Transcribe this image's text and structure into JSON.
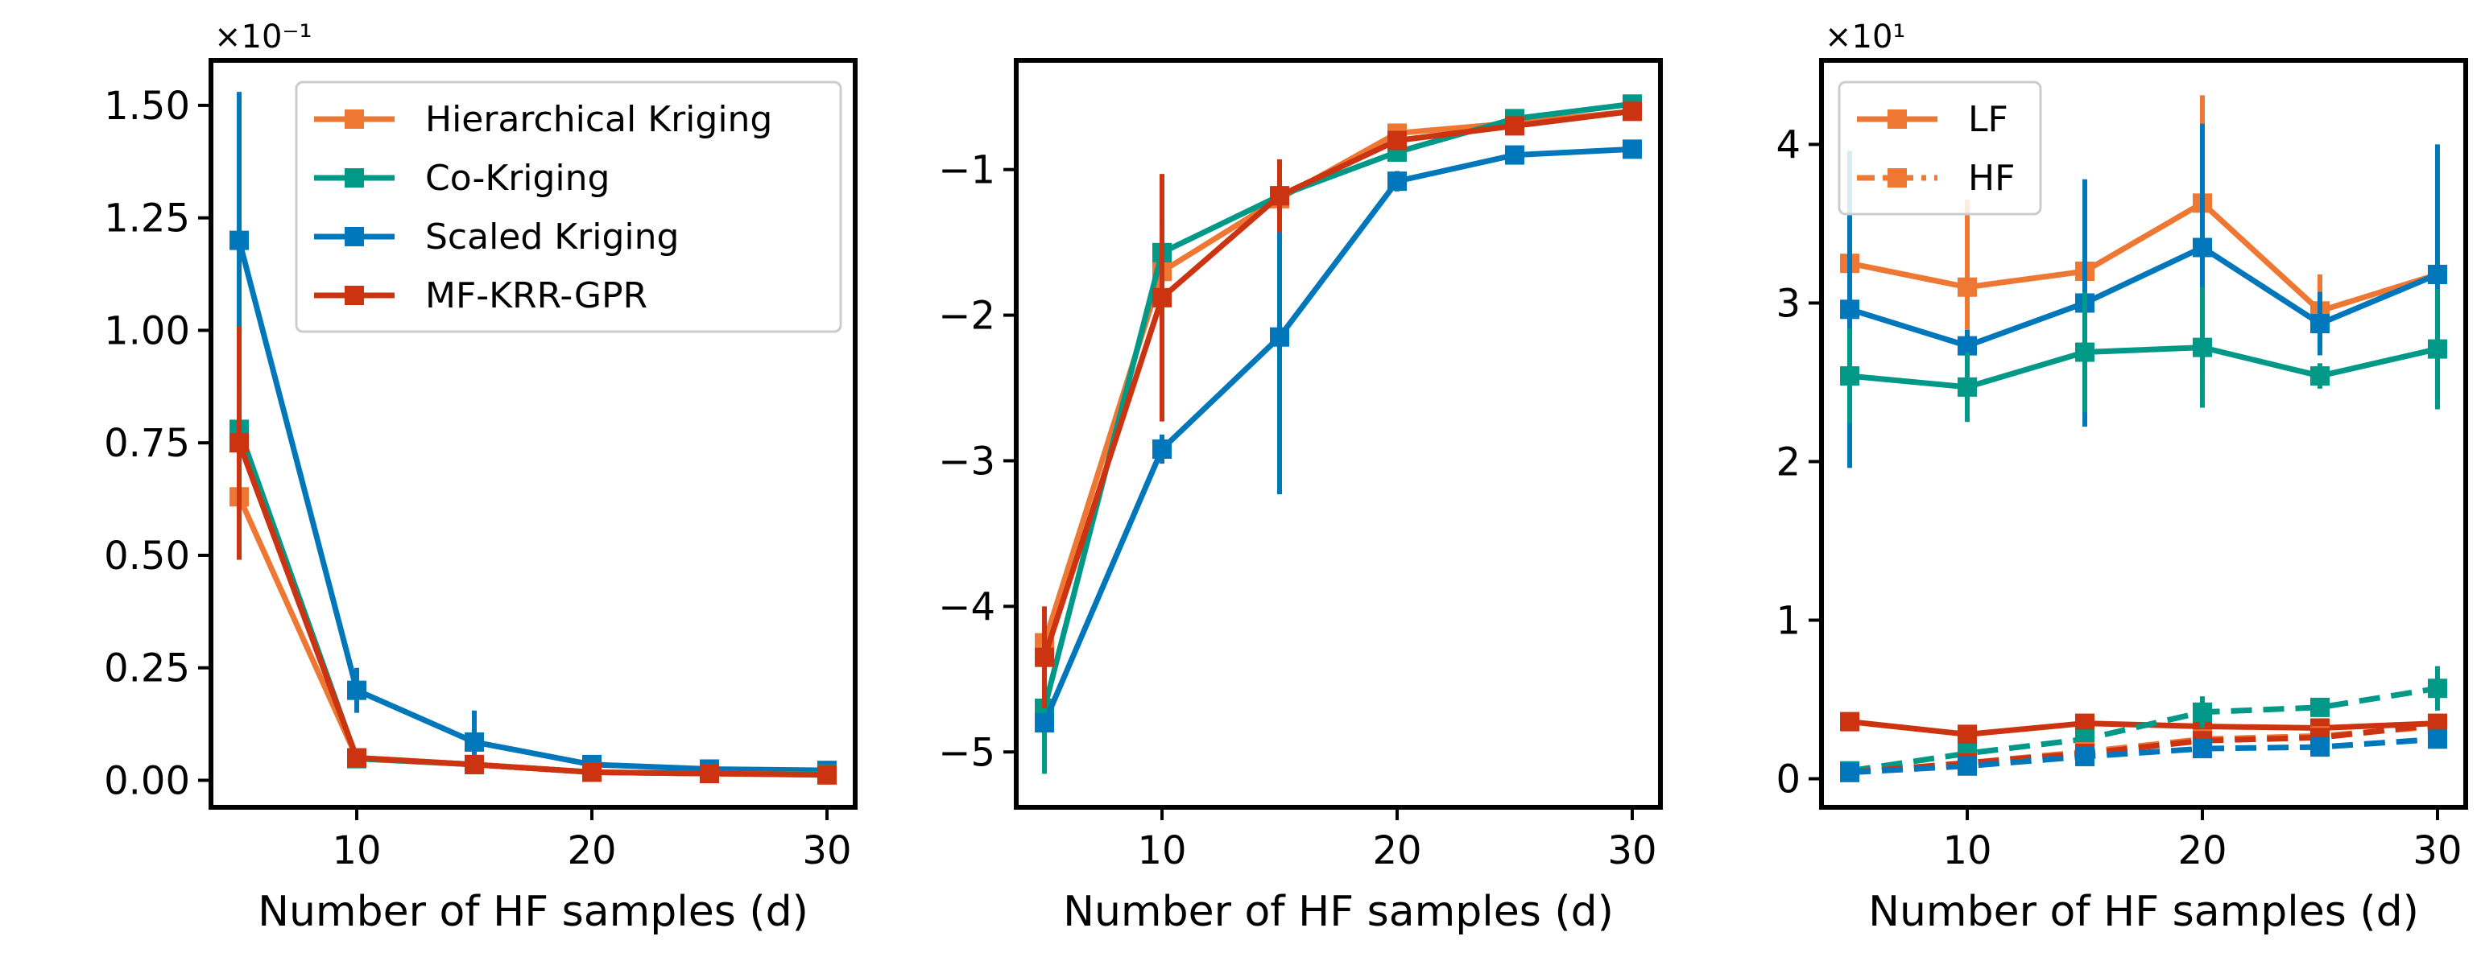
{
  "colors": {
    "Hierarchical Kriging": "#EE7733",
    "Co-Kriging": "#009988",
    "Scaled Kriging": "#0077BB",
    "MF-KRR-GPR": "#CC3311"
  },
  "chart_data": [
    {
      "type": "line",
      "xlabel": "Number of HF samples (d)",
      "x_ticks": [
        "10",
        "20",
        "30"
      ],
      "y_ticks": [
        "0.00",
        "0.25",
        "0.50",
        "0.75",
        "1.00",
        "1.25",
        "1.50"
      ],
      "y_multiplier": "×10⁻¹",
      "xlim": [
        3.8,
        31.2
      ],
      "ylim": [
        -0.06,
        1.6
      ],
      "legend": {
        "position": "upper right",
        "entries": [
          "Hierarchical Kriging",
          "Co-Kriging",
          "Scaled Kriging",
          "MF-KRR-GPR"
        ]
      },
      "x": [
        5,
        10,
        15,
        20,
        25,
        30
      ],
      "series": [
        {
          "name": "Scaled Kriging",
          "values": [
            1.2,
            0.2,
            0.085,
            0.035,
            0.025,
            0.022
          ],
          "err": [
            0.33,
            0.05,
            0.07,
            0.01,
            0.01,
            0.01
          ]
        },
        {
          "name": "Co-Kriging",
          "values": [
            0.78,
            0.048,
            0.035,
            0.018,
            0.015,
            0.014
          ],
          "err": [
            0.05,
            0.01,
            0.01,
            0.005,
            0.005,
            0.005
          ]
        },
        {
          "name": "Hierarchical Kriging",
          "values": [
            0.63,
            0.05,
            0.035,
            0.018,
            0.015,
            0.012
          ],
          "err": [
            0.05,
            0.01,
            0.01,
            0.005,
            0.005,
            0.005
          ]
        },
        {
          "name": "MF-KRR-GPR",
          "values": [
            0.75,
            0.05,
            0.035,
            0.018,
            0.015,
            0.012
          ],
          "err": [
            0.26,
            0.01,
            0.01,
            0.005,
            0.005,
            0.005
          ]
        }
      ]
    },
    {
      "type": "line",
      "xlabel": "Number of HF samples (d)",
      "x_ticks": [
        "10",
        "20",
        "30"
      ],
      "y_ticks": [
        "−5",
        "−4",
        "−3",
        "−2",
        "−1"
      ],
      "xlim": [
        3.8,
        31.2
      ],
      "ylim": [
        -5.38,
        -0.25
      ],
      "x": [
        5,
        10,
        15,
        20,
        25,
        30
      ],
      "series": [
        {
          "name": "Hierarchical Kriging",
          "values": [
            -4.25,
            -1.7,
            -1.2,
            -0.75,
            -0.68,
            -0.6
          ],
          "err": [
            0.1,
            0.1,
            0.1,
            0.06,
            0.05,
            0.05
          ]
        },
        {
          "name": "Co-Kriging",
          "values": [
            -4.7,
            -1.57,
            -1.18,
            -0.88,
            -0.65,
            -0.55
          ],
          "err": [
            0.45,
            0.22,
            0.06,
            0.05,
            0.06,
            0.05
          ]
        },
        {
          "name": "Scaled Kriging",
          "values": [
            -4.8,
            -2.92,
            -2.15,
            -1.08,
            -0.9,
            -0.86
          ],
          "err": [
            0.05,
            0.1,
            1.08,
            0.07,
            0.05,
            0.05
          ]
        },
        {
          "name": "MF-KRR-GPR",
          "values": [
            -4.35,
            -1.88,
            -1.18,
            -0.8,
            -0.7,
            -0.6
          ],
          "err": [
            0.35,
            0.85,
            0.25,
            0.05,
            0.05,
            0.05
          ]
        }
      ]
    },
    {
      "type": "line",
      "xlabel": "Number of HF samples (d)",
      "x_ticks": [
        "10",
        "20",
        "30"
      ],
      "y_ticks": [
        "0",
        "1",
        "2",
        "3",
        "4"
      ],
      "y_multiplier": "×10¹",
      "xlim": [
        3.8,
        31.2
      ],
      "ylim": [
        -0.18,
        4.53
      ],
      "legend": {
        "position": "upper left",
        "entries": [
          "LF",
          "HF"
        ]
      },
      "x": [
        5,
        10,
        15,
        20,
        25,
        30
      ],
      "series": [
        {
          "name": "Hierarchical Kriging",
          "fidelity": "LF",
          "values": [
            3.25,
            3.1,
            3.2,
            3.63,
            2.95,
            3.18
          ],
          "err": [
            0.7,
            0.55,
            0.08,
            0.68,
            0.23,
            0.05
          ]
        },
        {
          "name": "Scaled Kriging",
          "fidelity": "LF",
          "values": [
            2.96,
            2.73,
            3.0,
            3.35,
            2.87,
            3.18
          ],
          "err": [
            1.0,
            0.1,
            0.78,
            0.78,
            0.2,
            0.82
          ]
        },
        {
          "name": "Co-Kriging",
          "fidelity": "LF",
          "values": [
            2.54,
            2.47,
            2.69,
            2.72,
            2.54,
            2.71
          ],
          "err": [
            0.3,
            0.22,
            0.38,
            0.38,
            0.08,
            0.38
          ]
        },
        {
          "name": "MF-KRR-GPR",
          "fidelity": "LF",
          "values": [
            0.36,
            0.28,
            0.35,
            0.33,
            0.32,
            0.35
          ],
          "err": [
            0.05,
            0.05,
            0.06,
            0.05,
            0.05,
            0.05
          ]
        },
        {
          "name": "Co-Kriging",
          "fidelity": "HF",
          "values": [
            0.05,
            0.16,
            0.25,
            0.42,
            0.45,
            0.57
          ],
          "err": [
            0.05,
            0.05,
            0.05,
            0.1,
            0.05,
            0.14
          ]
        },
        {
          "name": "Hierarchical Kriging",
          "fidelity": "HF",
          "values": [
            0.04,
            0.1,
            0.17,
            0.25,
            0.27,
            0.33
          ],
          "err": [
            0.05,
            0.05,
            0.05,
            0.05,
            0.05,
            0.05
          ]
        },
        {
          "name": "MF-KRR-GPR",
          "fidelity": "HF",
          "values": [
            0.04,
            0.1,
            0.16,
            0.24,
            0.26,
            0.34
          ],
          "err": [
            0.05,
            0.05,
            0.05,
            0.05,
            0.05,
            0.05
          ]
        },
        {
          "name": "Scaled Kriging",
          "fidelity": "HF",
          "values": [
            0.04,
            0.08,
            0.14,
            0.19,
            0.2,
            0.25
          ],
          "err": [
            0.05,
            0.05,
            0.05,
            0.05,
            0.05,
            0.05
          ]
        }
      ]
    }
  ]
}
